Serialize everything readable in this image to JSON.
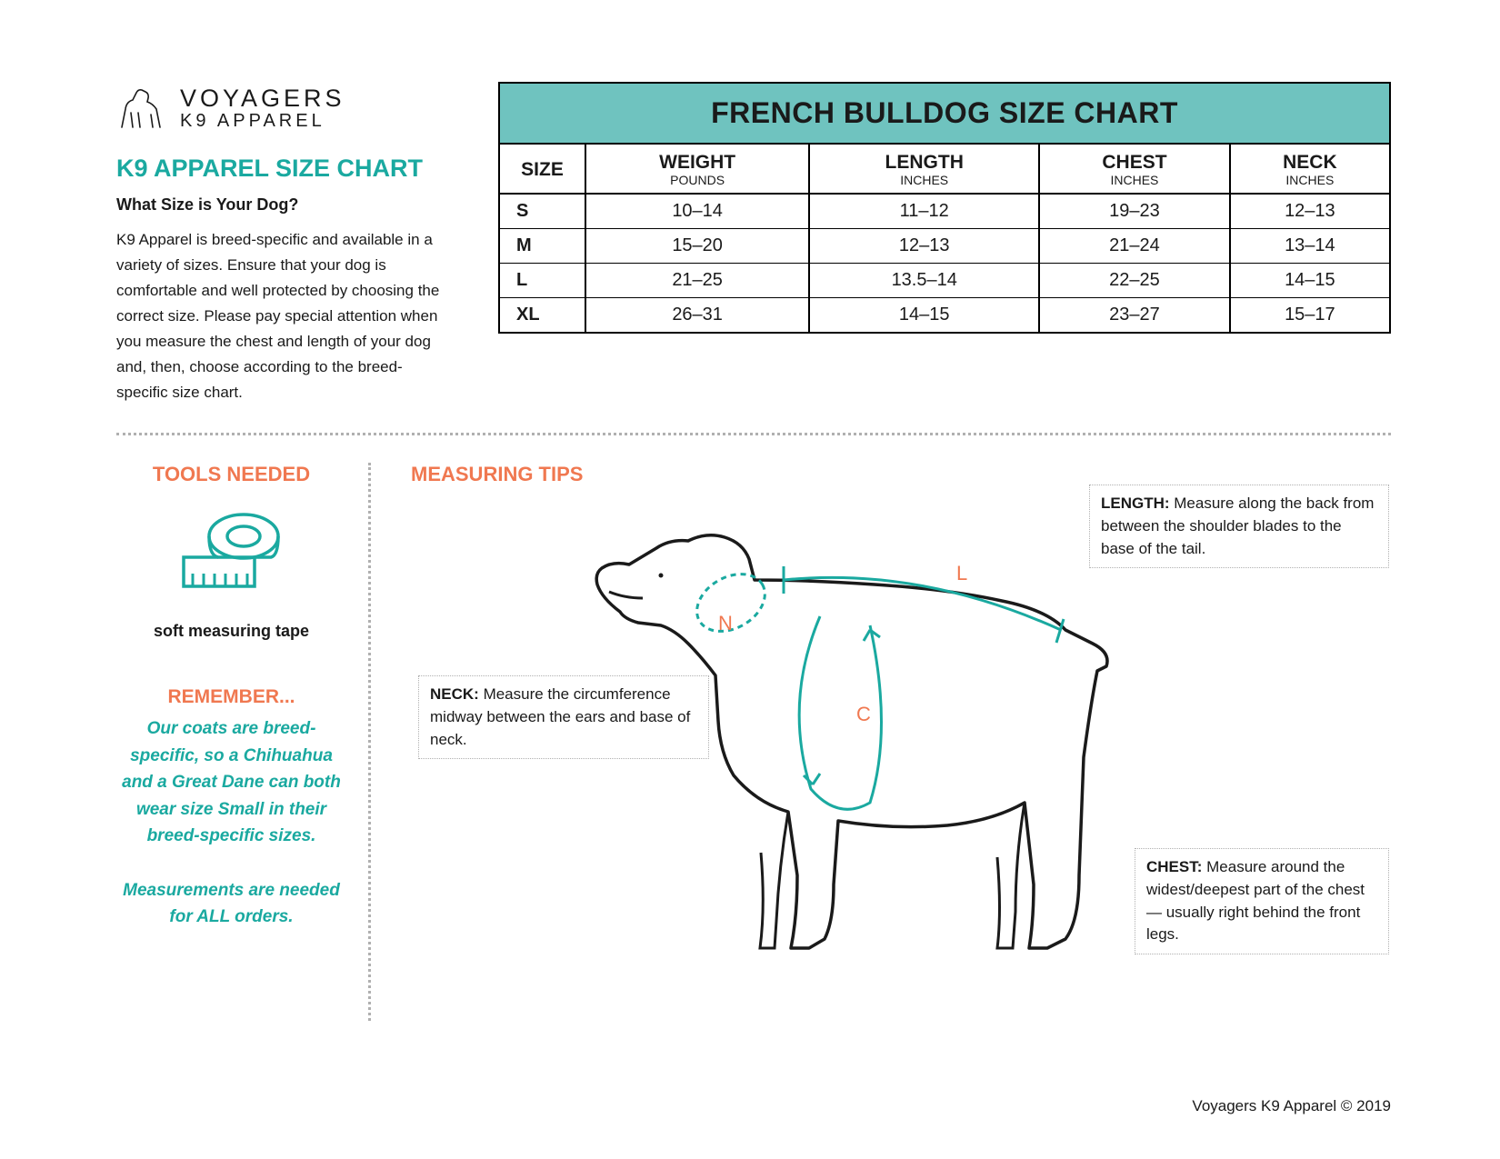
{
  "brand": {
    "line1": "VOYAGERS",
    "line2": "K9 APPAREL"
  },
  "left": {
    "title": "K9 APPAREL SIZE CHART",
    "subheading": "What Size is Your Dog?",
    "body": "K9 Apparel is breed-specific and available in a variety of sizes. Ensure that your dog is comfortable and well protected by choosing the correct size.  Please pay special attention when you measure the chest and length of your dog and, then, choose according to the breed-specific size chart."
  },
  "table": {
    "title": "FRENCH BULLDOG SIZE CHART",
    "header_bg": "#6fc3bf",
    "columns": [
      {
        "main": "SIZE",
        "sub": ""
      },
      {
        "main": "WEIGHT",
        "sub": "POUNDS"
      },
      {
        "main": "LENGTH",
        "sub": "INCHES"
      },
      {
        "main": "CHEST",
        "sub": "INCHES"
      },
      {
        "main": "NECK",
        "sub": "INCHES"
      }
    ],
    "rows": [
      {
        "size": "S",
        "weight": "10–14",
        "length": "11–12",
        "chest": "19–23",
        "neck": "12–13"
      },
      {
        "size": "M",
        "weight": "15–20",
        "length": "12–13",
        "chest": "21–24",
        "neck": "13–14"
      },
      {
        "size": "L",
        "weight": "21–25",
        "length": "13.5–14",
        "chest": "22–25",
        "neck": "14–15"
      },
      {
        "size": "XL",
        "weight": "26–31",
        "length": "14–15",
        "chest": "23–27",
        "neck": "15–17"
      }
    ]
  },
  "tools": {
    "heading": "TOOLS NEEDED",
    "label": "soft measuring tape"
  },
  "remember": {
    "heading": "REMEMBER...",
    "body": "Our coats are breed-specific, so a Chihuahua and a Great Dane can both wear size Small in their breed-specific sizes.",
    "body2": "Measurements are needed for ALL orders."
  },
  "tips": {
    "heading": "MEASURING TIPS",
    "length": {
      "label": "LENGTH:",
      "text": " Measure along the back from between the shoulder blades to the base of the tail."
    },
    "neck": {
      "label": "NECK:",
      "text": " Measure the circumference midway between the ears and base of neck."
    },
    "chest": {
      "label": "CHEST:",
      "text": " Measure around the widest/deepest part of the chest— usually right behind the front legs."
    },
    "markers": {
      "N": "N",
      "L": "L",
      "C": "C"
    }
  },
  "colors": {
    "teal": "#1aa9a0",
    "teal_bg": "#6fc3bf",
    "coral": "#f07850",
    "text": "#1a1a1a",
    "dot": "#b0b0b0"
  },
  "footer": "Voyagers K9 Apparel © 2019"
}
